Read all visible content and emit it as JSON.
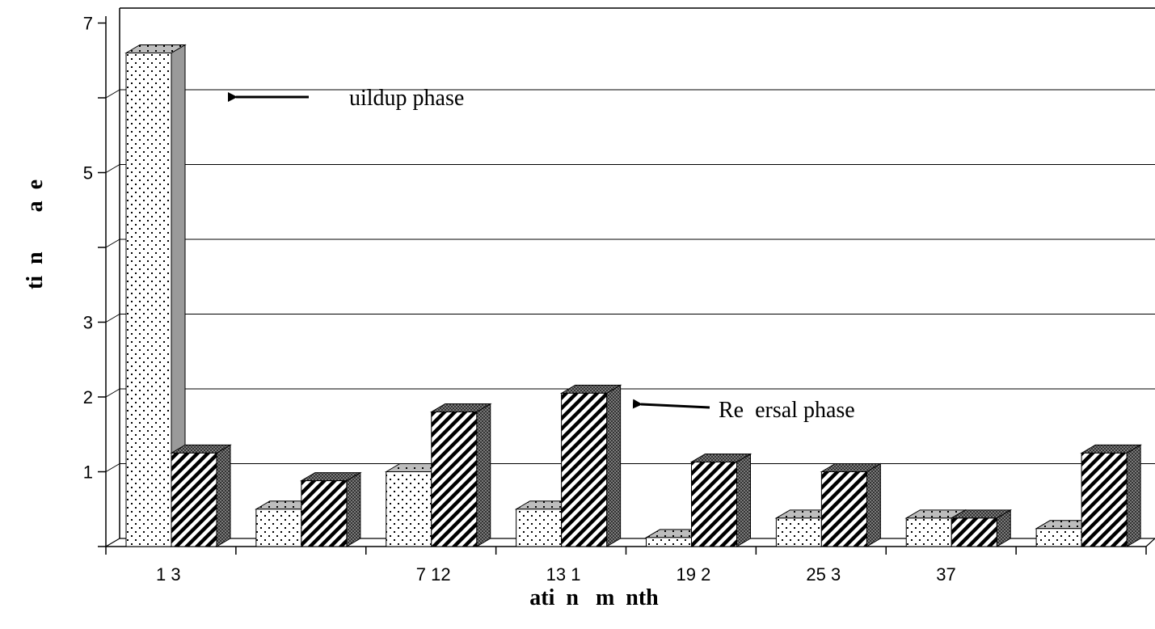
{
  "chart_data": {
    "type": "bar",
    "title": "",
    "xlabel": "ati  n   m  nth",
    "ylabel": "ti  n       a  e",
    "ylim": [
      0,
      7
    ],
    "y_tick_labels": [
      {
        "value": 1,
        "label": "1"
      },
      {
        "value": 2,
        "label": "2"
      },
      {
        "value": 3,
        "label": "3"
      },
      {
        "value": 5,
        "label": "5"
      },
      {
        "value": 7,
        "label": "7"
      }
    ],
    "categories": [
      "1 3",
      "",
      "7 12",
      "13 1",
      "19 2",
      "25 3",
      "37",
      ""
    ],
    "series": [
      {
        "values": [
          6.6,
          0.5,
          1.0,
          0.5,
          0.12,
          0.38,
          0.38,
          0.24
        ]
      },
      {
        "values": [
          1.25,
          0.88,
          1.8,
          2.05,
          1.13,
          1.0,
          0.38,
          1.25
        ]
      }
    ],
    "grid": true,
    "annotations": [
      {
        "text": "uildup phase"
      },
      {
        "text": "Re  ersal phase"
      }
    ]
  }
}
